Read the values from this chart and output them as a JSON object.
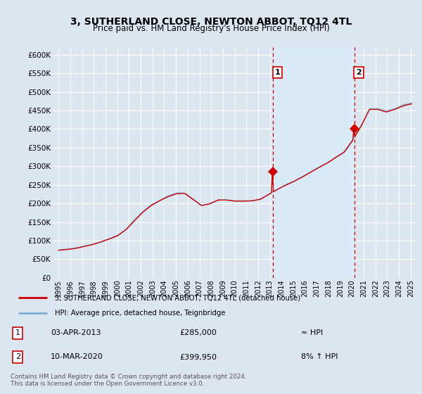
{
  "title": "3, SUTHERLAND CLOSE, NEWTON ABBOT, TQ12 4TL",
  "subtitle": "Price paid vs. HM Land Registry's House Price Index (HPI)",
  "ylabel_ticks": [
    "£0",
    "£50K",
    "£100K",
    "£150K",
    "£200K",
    "£250K",
    "£300K",
    "£350K",
    "£400K",
    "£450K",
    "£500K",
    "£550K",
    "£600K"
  ],
  "ylim": [
    0,
    620000
  ],
  "yticks": [
    0,
    50000,
    100000,
    150000,
    200000,
    250000,
    300000,
    350000,
    400000,
    450000,
    500000,
    550000,
    600000
  ],
  "background_color": "#dce6f0",
  "grid_color": "#ffffff",
  "red_color": "#cc0000",
  "blue_color": "#7bafd4",
  "shade_color": "#daeaf7",
  "legend_label_red": "3, SUTHERLAND CLOSE, NEWTON ABBOT, TQ12 4TL (detached house)",
  "legend_label_blue": "HPI: Average price, detached house, Teignbridge",
  "transaction1_date": "03-APR-2013",
  "transaction1_price": "£285,000",
  "transaction1_hpi": "≈ HPI",
  "transaction2_date": "10-MAR-2020",
  "transaction2_price": "£399,950",
  "transaction2_hpi": "8% ↑ HPI",
  "footer": "Contains HM Land Registry data © Crown copyright and database right 2024.\nThis data is licensed under the Open Government Licence v3.0.",
  "point1_x": 2013.25,
  "point1_y": 285000,
  "point2_x": 2020.19,
  "point2_y": 399950,
  "vline1_x": 2013.25,
  "vline2_x": 2020.19,
  "xlim": [
    1994.5,
    2025.5
  ],
  "x_tick_years": [
    1995,
    1996,
    1997,
    1998,
    1999,
    2000,
    2001,
    2002,
    2003,
    2004,
    2005,
    2006,
    2007,
    2008,
    2009,
    2010,
    2011,
    2012,
    2013,
    2014,
    2015,
    2016,
    2017,
    2018,
    2019,
    2020,
    2021,
    2022,
    2023,
    2024,
    2025
  ]
}
